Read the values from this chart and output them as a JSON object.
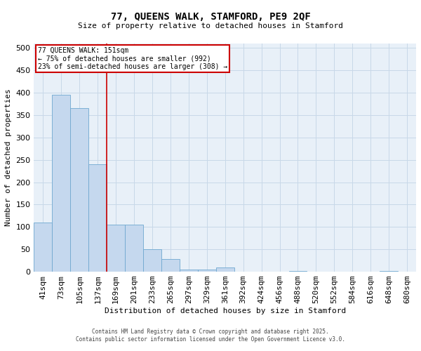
{
  "title": "77, QUEENS WALK, STAMFORD, PE9 2QF",
  "subtitle": "Size of property relative to detached houses in Stamford",
  "xlabel": "Distribution of detached houses by size in Stamford",
  "ylabel": "Number of detached properties",
  "categories": [
    "41sqm",
    "73sqm",
    "105sqm",
    "137sqm",
    "169sqm",
    "201sqm",
    "233sqm",
    "265sqm",
    "297sqm",
    "329sqm",
    "361sqm",
    "392sqm",
    "424sqm",
    "456sqm",
    "488sqm",
    "520sqm",
    "552sqm",
    "584sqm",
    "616sqm",
    "648sqm",
    "680sqm"
  ],
  "values": [
    110,
    395,
    365,
    240,
    105,
    105,
    50,
    28,
    5,
    5,
    10,
    0,
    0,
    0,
    2,
    0,
    0,
    0,
    0,
    2,
    0
  ],
  "bar_color": "#c5d8ee",
  "bar_edgecolor": "#6fa8d0",
  "grid_color": "#c8d8e8",
  "bg_color": "#e8f0f8",
  "red_line_index": 3.5,
  "annotation_text": "77 QUEENS WALK: 151sqm\n← 75% of detached houses are smaller (992)\n23% of semi-detached houses are larger (308) →",
  "annotation_box_color": "#ffffff",
  "annotation_border_color": "#cc0000",
  "footer_line1": "Contains HM Land Registry data © Crown copyright and database right 2025.",
  "footer_line2": "Contains public sector information licensed under the Open Government Licence v3.0.",
  "ylim": [
    0,
    510
  ],
  "yticks": [
    0,
    50,
    100,
    150,
    200,
    250,
    300,
    350,
    400,
    450,
    500
  ]
}
